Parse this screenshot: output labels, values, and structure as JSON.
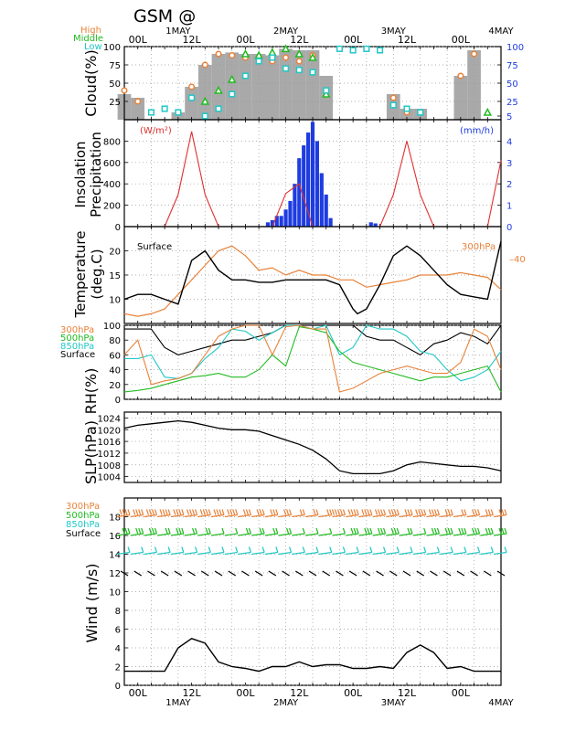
{
  "header": {
    "title": "GSM  @"
  },
  "colors": {
    "high": "#e8823a",
    "middle": "#22bb22",
    "low": "#22c7c7",
    "surface": "#000000",
    "insolation": "#e03030",
    "precip": "#1e3ce0",
    "cloud_fill": "#a9a9a9",
    "axis_blue": "#1e3ce0"
  },
  "time_axis": {
    "day_labels": [
      {
        "t": 12,
        "text": "1MAY"
      },
      {
        "t": 36,
        "text": "2MAY"
      },
      {
        "t": 60,
        "text": "3MAY"
      },
      {
        "t": 84,
        "text": "4MAY"
      }
    ],
    "tick_labels": [
      {
        "t": 3,
        "text": "00L"
      },
      {
        "t": 15,
        "text": "12L"
      },
      {
        "t": 27,
        "text": "00L"
      },
      {
        "t": 39,
        "text": "12L"
      },
      {
        "t": 51,
        "text": "00L"
      },
      {
        "t": 63,
        "text": "12L"
      },
      {
        "t": 75,
        "text": "00L"
      }
    ]
  },
  "chart_data": [
    {
      "type": "area",
      "ylabel": "Cloud(%)",
      "ylim": [
        0,
        100
      ],
      "yticks": [
        "25",
        "50",
        "75",
        "100"
      ],
      "ytick_values": [
        25,
        50,
        75,
        100
      ],
      "right_yticks": [
        "5",
        "25",
        "50",
        "75",
        "100"
      ],
      "right_ytick_values": [
        5,
        25,
        50,
        75,
        100
      ],
      "legend": [
        "High",
        "Middle",
        "Low"
      ],
      "x": [
        0,
        3,
        6,
        9,
        12,
        15,
        18,
        21,
        24,
        27,
        30,
        33,
        36,
        39,
        42,
        45,
        48,
        51,
        54,
        57,
        60,
        63,
        66,
        69,
        72,
        75,
        78,
        81
      ],
      "total": [
        35,
        30,
        0,
        0,
        10,
        45,
        75,
        90,
        92,
        90,
        90,
        88,
        97,
        95,
        95,
        60,
        0,
        0,
        0,
        0,
        35,
        15,
        15,
        0,
        0,
        60,
        95,
        0
      ],
      "series": [
        {
          "name": "High",
          "values": [
            40,
            25,
            null,
            null,
            null,
            45,
            75,
            90,
            88,
            85,
            82,
            80,
            85,
            80,
            88,
            40,
            null,
            null,
            null,
            null,
            30,
            10,
            10,
            null,
            null,
            60,
            90,
            null
          ]
        },
        {
          "name": "Middle",
          "values": [
            null,
            null,
            null,
            null,
            null,
            null,
            25,
            40,
            55,
            90,
            88,
            92,
            97,
            90,
            85,
            35,
            null,
            null,
            null,
            null,
            null,
            null,
            null,
            null,
            null,
            null,
            null,
            10
          ]
        },
        {
          "name": "Low",
          "values": [
            null,
            null,
            10,
            15,
            10,
            30,
            5,
            15,
            35,
            60,
            80,
            85,
            70,
            68,
            65,
            40,
            97,
            95,
            97,
            95,
            20,
            15,
            10,
            null,
            null,
            null,
            null,
            null
          ]
        }
      ]
    },
    {
      "type": "bar",
      "ylabel": [
        "Insolation",
        "Precipitation"
      ],
      "left_unit": "(W/m²)",
      "right_unit": "(mm/h)",
      "ylim": [
        0,
        1000
      ],
      "yticks": [
        "0",
        "200",
        "400",
        "600",
        "800"
      ],
      "ytick_values": [
        0,
        200,
        400,
        600,
        800
      ],
      "right_ylim": [
        0,
        5
      ],
      "right_yticks": [
        "0",
        "1",
        "2",
        "3",
        "4"
      ],
      "right_ytick_values": [
        0,
        1,
        2,
        3,
        4
      ],
      "insolation": {
        "x": [
          0,
          6,
          9,
          12,
          15,
          18,
          21,
          24,
          30,
          33,
          36,
          39,
          42,
          45,
          48,
          54,
          57,
          60,
          63,
          66,
          69,
          72,
          78,
          81,
          84
        ],
        "values": [
          0,
          0,
          0,
          300,
          890,
          300,
          0,
          0,
          0,
          0,
          310,
          400,
          0,
          0,
          0,
          0,
          0,
          300,
          800,
          300,
          0,
          0,
          0,
          0,
          620
        ]
      },
      "precip": {
        "x": [
          32,
          33,
          34,
          35,
          36,
          37,
          38,
          39,
          40,
          41,
          42,
          43,
          44,
          45,
          46,
          55,
          56
        ],
        "values": [
          0.2,
          0.3,
          0.5,
          0.5,
          0.8,
          1.2,
          2.0,
          3.2,
          3.8,
          4.4,
          4.9,
          4.0,
          2.5,
          1.5,
          0.4,
          0.2,
          0.15
        ]
      }
    },
    {
      "type": "line",
      "ylabel": [
        "Temperature",
        "(deg.C)"
      ],
      "ylim": [
        5,
        25
      ],
      "yticks": [
        "10",
        "15",
        "20"
      ],
      "ytick_values": [
        10,
        15,
        20
      ],
      "right_ytick": "–40",
      "surface_label": "Surface",
      "pressure_label": "300hPa",
      "series": [
        {
          "name": "Surface",
          "x": [
            0,
            3,
            6,
            9,
            12,
            15,
            18,
            21,
            24,
            27,
            30,
            33,
            36,
            39,
            42,
            45,
            48,
            51,
            52,
            54,
            57,
            60,
            63,
            66,
            69,
            72,
            75,
            78,
            81,
            84
          ],
          "values": [
            10,
            11,
            11,
            10,
            9,
            18,
            20,
            16,
            14,
            14,
            13.5,
            13.5,
            14,
            14,
            14,
            14,
            13,
            8,
            7,
            8,
            13,
            19,
            21,
            19,
            16,
            13,
            11,
            10.5,
            10,
            22
          ]
        },
        {
          "name": "300hPa",
          "x": [
            0,
            3,
            6,
            9,
            12,
            15,
            18,
            21,
            24,
            27,
            30,
            33,
            36,
            39,
            42,
            45,
            48,
            51,
            54,
            57,
            60,
            63,
            66,
            69,
            72,
            75,
            78,
            81,
            84
          ],
          "values": [
            7,
            6.5,
            7,
            8,
            11,
            14,
            17,
            20,
            21,
            19,
            16,
            16.5,
            15,
            16,
            15,
            15,
            14,
            14,
            12.5,
            13,
            13.5,
            14,
            15,
            15,
            15,
            15.5,
            15,
            14.5,
            12
          ]
        }
      ]
    },
    {
      "type": "line",
      "ylabel": "RH(%)",
      "ylim": [
        0,
        100
      ],
      "yticks": [
        "0",
        "20",
        "40",
        "60",
        "80",
        "100"
      ],
      "ytick_values": [
        0,
        20,
        40,
        60,
        80,
        100
      ],
      "legend": [
        "300hPa",
        "500hPa",
        "850hPa",
        "Surface"
      ],
      "x": [
        0,
        3,
        6,
        9,
        12,
        15,
        18,
        21,
        24,
        27,
        30,
        33,
        36,
        39,
        42,
        45,
        48,
        51,
        54,
        57,
        60,
        63,
        66,
        69,
        72,
        75,
        78,
        81,
        84
      ],
      "series": [
        {
          "name": "Surface",
          "values": [
            95,
            95,
            95,
            70,
            60,
            65,
            70,
            75,
            80,
            80,
            85,
            90,
            100,
            100,
            100,
            100,
            100,
            100,
            85,
            80,
            80,
            70,
            60,
            75,
            80,
            90,
            85,
            75,
            100
          ]
        },
        {
          "name": "850hPa",
          "values": [
            55,
            55,
            60,
            30,
            28,
            35,
            55,
            70,
            95,
            92,
            80,
            90,
            100,
            100,
            95,
            100,
            60,
            70,
            100,
            95,
            95,
            85,
            65,
            60,
            40,
            25,
            30,
            40,
            65
          ]
        },
        {
          "name": "500hPa",
          "values": [
            10,
            12,
            15,
            20,
            25,
            30,
            32,
            35,
            30,
            30,
            40,
            60,
            45,
            98,
            95,
            90,
            65,
            50,
            45,
            40,
            35,
            30,
            25,
            30,
            30,
            35,
            40,
            45,
            10
          ]
        },
        {
          "name": "300hPa",
          "values": [
            60,
            80,
            20,
            25,
            28,
            35,
            60,
            85,
            95,
            100,
            100,
            60,
            98,
            100,
            95,
            95,
            10,
            15,
            25,
            35,
            40,
            45,
            40,
            35,
            35,
            50,
            95,
            85,
            40
          ]
        }
      ]
    },
    {
      "type": "line",
      "ylabel": "SLP(hPa)",
      "ylim": [
        1002,
        1026
      ],
      "yticks": [
        "1004",
        "1008",
        "1012",
        "1016",
        "1020",
        "1024"
      ],
      "ytick_values": [
        1004,
        1008,
        1012,
        1016,
        1020,
        1024
      ],
      "series": [
        {
          "name": "Surface",
          "x": [
            0,
            3,
            6,
            9,
            12,
            15,
            18,
            21,
            24,
            27,
            30,
            33,
            36,
            39,
            42,
            45,
            48,
            51,
            54,
            57,
            60,
            63,
            66,
            69,
            72,
            75,
            78,
            81,
            84
          ],
          "values": [
            1020.5,
            1021.5,
            1022,
            1022.5,
            1023,
            1022.5,
            1021.5,
            1020.5,
            1020,
            1020,
            1019.5,
            1018,
            1016.5,
            1015,
            1013,
            1010,
            1006,
            1005,
            1005,
            1005,
            1006,
            1008,
            1009,
            1008.5,
            1008,
            1007.5,
            1007.5,
            1007,
            1006
          ]
        }
      ]
    },
    {
      "type": "line",
      "ylabel": "Wind  (m/s)",
      "ylim": [
        0,
        20
      ],
      "yticks": [
        "0",
        "2",
        "4",
        "6",
        "8",
        "10",
        "12",
        "14",
        "16",
        "18"
      ],
      "ytick_values": [
        0,
        2,
        4,
        6,
        8,
        10,
        12,
        14,
        16,
        18
      ],
      "legend": [
        "300hPa",
        "500hPa",
        "850hPa",
        "Surface"
      ],
      "series": [
        {
          "name": "Surface",
          "x": [
            0,
            3,
            6,
            9,
            12,
            15,
            18,
            21,
            24,
            27,
            30,
            33,
            36,
            39,
            42,
            45,
            48,
            51,
            54,
            57,
            60,
            63,
            66,
            69,
            72,
            75,
            78,
            81,
            84
          ],
          "values": [
            1.5,
            1.5,
            1.5,
            1.5,
            4.0,
            5.0,
            4.5,
            2.5,
            2.0,
            1.8,
            1.5,
            2.0,
            2.0,
            2.5,
            2.0,
            2.2,
            2.2,
            1.8,
            1.8,
            2.0,
            1.8,
            3.5,
            4.3,
            3.5,
            1.8,
            2.0,
            1.5,
            1.5,
            1.5
          ]
        }
      ],
      "barbs": {
        "x": [
          0,
          3,
          6,
          9,
          12,
          15,
          18,
          21,
          24,
          27,
          30,
          33,
          36,
          39,
          42,
          45,
          48,
          51,
          54,
          57,
          60,
          63,
          66,
          69,
          72,
          75,
          78,
          81,
          84
        ],
        "levels": [
          {
            "name": "300hPa",
            "y": 18,
            "speed": [
              4,
              4,
              4,
              4,
              4,
              4,
              4,
              4,
              4,
              3,
              3,
              3,
              3,
              2,
              2,
              2,
              5,
              4,
              4,
              4,
              4,
              3,
              4,
              4,
              3,
              2,
              3,
              3,
              3
            ]
          },
          {
            "name": "500hPa",
            "y": 16,
            "speed": [
              3,
              3,
              3,
              2,
              3,
              2,
              2,
              1,
              1,
              2,
              2,
              2,
              2,
              1,
              1,
              1,
              1,
              3,
              3,
              3,
              3,
              2,
              1,
              3,
              3,
              3,
              3,
              3,
              3
            ]
          },
          {
            "name": "850hPa",
            "y": 14,
            "speed": [
              1,
              1,
              1,
              1,
              1,
              1,
              1,
              1,
              1,
              1,
              1,
              1,
              1,
              1,
              1,
              1,
              1,
              1,
              1,
              1,
              1,
              1,
              1,
              1,
              1,
              1,
              1,
              1,
              1
            ]
          },
          {
            "name": "Surface",
            "y": 12,
            "speed": [
              0,
              0,
              0,
              0,
              0,
              0,
              0,
              0,
              0,
              0,
              0,
              0,
              0,
              0,
              0,
              0,
              0,
              0,
              0,
              0,
              0,
              0,
              0,
              0,
              0,
              0,
              0,
              0,
              0
            ]
          }
        ]
      }
    }
  ]
}
